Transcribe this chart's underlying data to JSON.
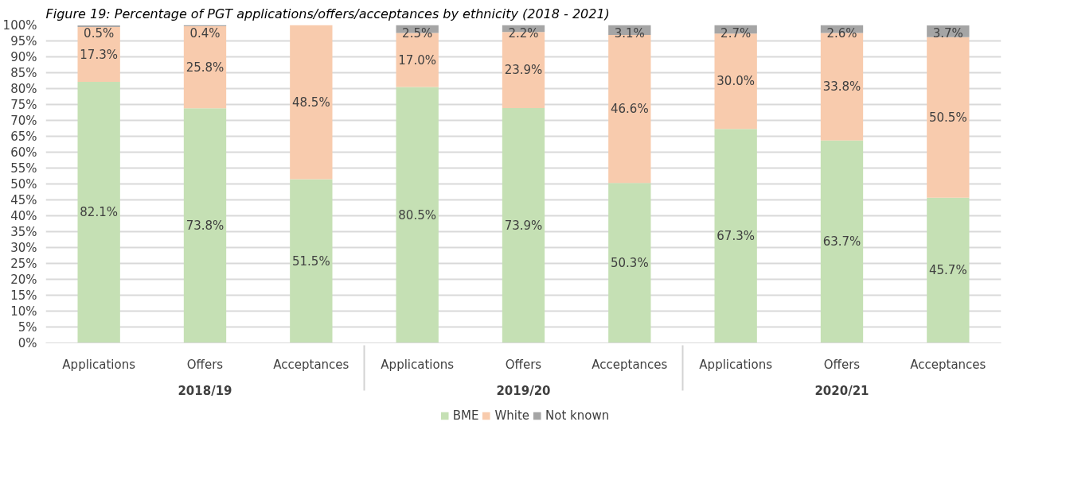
{
  "chart_data": {
    "type": "bar",
    "stacked": true,
    "title": "Figure 19: Percentage of PGT applications/offers/acceptances by ethnicity (2018 - 2021)",
    "categories": [
      "Applications",
      "Offers",
      "Acceptances",
      "Applications",
      "Offers",
      "Acceptances",
      "Applications",
      "Offers",
      "Acceptances"
    ],
    "annotations": [
      "2018/19",
      "2019/20",
      "2020/21"
    ],
    "series": [
      {
        "name": "BME",
        "color": "#c5e0b4",
        "values": [
          82.1,
          73.8,
          51.5,
          80.5,
          73.9,
          50.3,
          67.3,
          63.7,
          45.7
        ],
        "value_labels": [
          "82.1%",
          "73.8%",
          "51.5%",
          "80.5%",
          "73.9%",
          "50.3%",
          "67.3%",
          "63.7%",
          "45.7%"
        ]
      },
      {
        "name": "White",
        "color": "#f8cbad",
        "values": [
          17.3,
          25.8,
          48.5,
          17.0,
          23.9,
          46.6,
          30.0,
          33.8,
          50.5
        ],
        "value_labels": [
          "17.3%",
          "25.8%",
          "48.5%",
          "17.0%",
          "23.9%",
          "46.6%",
          "30.0%",
          "33.8%",
          "50.5%"
        ]
      },
      {
        "name": "Not known",
        "color": "#a5a5a5",
        "values": [
          0.5,
          0.4,
          0,
          2.5,
          2.2,
          3.1,
          2.7,
          2.6,
          3.7
        ],
        "value_labels": [
          "0.5%",
          "0.4%",
          null,
          "2.5%",
          "2.2%",
          "3.1%",
          "2.7%",
          "2.6%",
          "3.7%"
        ]
      }
    ],
    "ylim": [
      0,
      100
    ],
    "yticks": [
      {
        "value": 0,
        "label": "0%"
      },
      {
        "value": 5,
        "label": "5%"
      },
      {
        "value": 10,
        "label": "10%"
      },
      {
        "value": 15,
        "label": "15%"
      },
      {
        "value": 20,
        "label": "20%"
      },
      {
        "value": 25,
        "label": "25%"
      },
      {
        "value": 30,
        "label": "30%"
      },
      {
        "value": 35,
        "label": "35%"
      },
      {
        "value": 40,
        "label": "40%"
      },
      {
        "value": 45,
        "label": "45%"
      },
      {
        "value": 50,
        "label": "50%"
      },
      {
        "value": 55,
        "label": "55%"
      },
      {
        "value": 60,
        "label": "60%"
      },
      {
        "value": 65,
        "label": "65%"
      },
      {
        "value": 70,
        "label": "70%"
      },
      {
        "value": 75,
        "label": "75%"
      },
      {
        "value": 80,
        "label": "80%"
      },
      {
        "value": 85,
        "label": "85%"
      },
      {
        "value": 90,
        "label": "90%"
      },
      {
        "value": 95,
        "label": "95%"
      },
      {
        "value": 100,
        "label": "100%"
      }
    ],
    "grid": "y",
    "legend": "bottom"
  }
}
